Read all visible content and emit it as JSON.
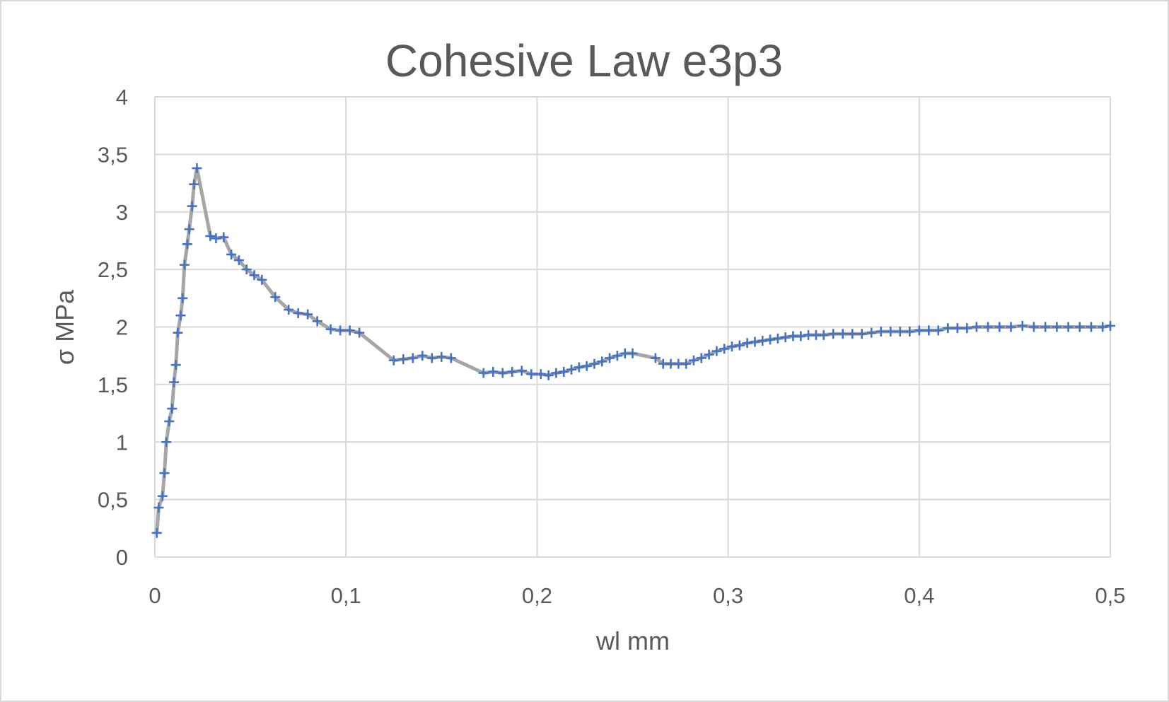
{
  "chart_data": {
    "type": "line",
    "title": "Cohesive Law e3p3",
    "xlabel": "wl mm",
    "ylabel": "σ MPa",
    "xlim": [
      0,
      0.5
    ],
    "ylim": [
      0,
      4
    ],
    "x_ticks": [
      "0",
      "0,1",
      "0,2",
      "0,3",
      "0,4",
      "0,5"
    ],
    "y_ticks": [
      "0",
      "0,5",
      "1",
      "1,5",
      "2",
      "2,5",
      "3",
      "3,5",
      "4"
    ],
    "grid": true,
    "legend": "none",
    "colors": {
      "line": "#a6a6a6",
      "marker": "#4472c4",
      "grid": "#d9d9d9",
      "text": "#595959"
    },
    "series": [
      {
        "marker": "plus",
        "x": [
          0.001,
          0.002,
          0.004,
          0.005,
          0.006,
          0.0075,
          0.009,
          0.01,
          0.011,
          0.012,
          0.0135,
          0.0145,
          0.0155,
          0.017,
          0.018,
          0.0195,
          0.0205,
          0.022,
          0.029,
          0.032,
          0.036,
          0.04,
          0.044,
          0.048,
          0.052,
          0.056,
          0.063,
          0.07,
          0.075,
          0.08,
          0.085,
          0.092,
          0.097,
          0.102,
          0.107,
          0.125,
          0.13,
          0.135,
          0.14,
          0.145,
          0.15,
          0.155,
          0.172,
          0.177,
          0.182,
          0.187,
          0.192,
          0.197,
          0.202,
          0.206,
          0.21,
          0.214,
          0.218,
          0.222,
          0.226,
          0.23,
          0.234,
          0.238,
          0.242,
          0.246,
          0.25,
          0.262,
          0.266,
          0.27,
          0.274,
          0.278,
          0.282,
          0.286,
          0.29,
          0.294,
          0.298,
          0.302,
          0.306,
          0.31,
          0.314,
          0.318,
          0.322,
          0.326,
          0.33,
          0.334,
          0.338,
          0.342,
          0.346,
          0.35,
          0.355,
          0.36,
          0.365,
          0.37,
          0.375,
          0.38,
          0.385,
          0.39,
          0.395,
          0.4,
          0.405,
          0.41,
          0.415,
          0.42,
          0.425,
          0.43,
          0.436,
          0.442,
          0.448,
          0.454,
          0.46,
          0.466,
          0.472,
          0.478,
          0.484,
          0.49,
          0.496,
          0.5
        ],
        "y": [
          0.21,
          0.43,
          0.53,
          0.73,
          1.0,
          1.18,
          1.29,
          1.52,
          1.67,
          1.95,
          2.1,
          2.25,
          2.54,
          2.72,
          2.85,
          3.05,
          3.24,
          3.38,
          2.79,
          2.77,
          2.78,
          2.63,
          2.58,
          2.5,
          2.45,
          2.41,
          2.26,
          2.15,
          2.12,
          2.11,
          2.05,
          1.98,
          1.97,
          1.97,
          1.95,
          1.71,
          1.72,
          1.73,
          1.75,
          1.73,
          1.74,
          1.73,
          1.6,
          1.61,
          1.6,
          1.61,
          1.62,
          1.59,
          1.59,
          1.58,
          1.6,
          1.61,
          1.63,
          1.65,
          1.66,
          1.68,
          1.7,
          1.73,
          1.75,
          1.77,
          1.77,
          1.73,
          1.68,
          1.68,
          1.68,
          1.68,
          1.71,
          1.73,
          1.76,
          1.79,
          1.81,
          1.83,
          1.84,
          1.86,
          1.87,
          1.88,
          1.89,
          1.9,
          1.91,
          1.92,
          1.92,
          1.93,
          1.93,
          1.93,
          1.94,
          1.94,
          1.94,
          1.94,
          1.95,
          1.96,
          1.96,
          1.96,
          1.96,
          1.97,
          1.97,
          1.97,
          1.99,
          1.99,
          1.99,
          2.0,
          2.0,
          2.0,
          2.0,
          2.01,
          2.0,
          2.0,
          2.0,
          2.0,
          2.0,
          2.0,
          2.0,
          2.01
        ]
      }
    ]
  }
}
